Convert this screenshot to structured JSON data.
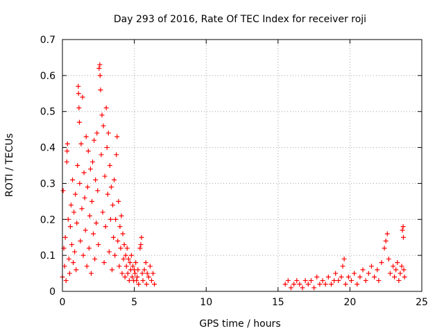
{
  "chart_data": {
    "type": "scatter",
    "title": "Day 293 of 2016, Rate Of TEC Index for receiver roji",
    "xlabel": "GPS time / hours",
    "ylabel": "ROTI / TECUs",
    "xlim": [
      0,
      25
    ],
    "ylim": [
      0,
      0.7
    ],
    "xticks": [
      0,
      5,
      10,
      15,
      20,
      25
    ],
    "xtick_labels": [
      "0",
      "5",
      "10",
      "15",
      "20",
      "25"
    ],
    "yticks": [
      0,
      0.1,
      0.2,
      0.3,
      0.4,
      0.5,
      0.6,
      0.7
    ],
    "ytick_labels": [
      "0",
      "0.1",
      "0.2",
      "0.3",
      "0.4",
      "0.5",
      "0.6",
      "0.7"
    ],
    "grid": true,
    "marker": "+",
    "marker_color": "#ff0000",
    "series": [
      {
        "name": "ROTI",
        "points": [
          [
            0.0,
            0.04
          ],
          [
            0.05,
            0.28
          ],
          [
            0.1,
            0.12
          ],
          [
            0.15,
            0.07
          ],
          [
            0.2,
            0.15
          ],
          [
            0.25,
            0.03
          ],
          [
            0.3,
            0.36
          ],
          [
            0.32,
            0.39
          ],
          [
            0.35,
            0.41
          ],
          [
            0.4,
            0.2
          ],
          [
            0.45,
            0.09
          ],
          [
            0.5,
            0.05
          ],
          [
            0.55,
            0.18
          ],
          [
            0.6,
            0.24
          ],
          [
            0.65,
            0.13
          ],
          [
            0.7,
            0.31
          ],
          [
            0.75,
            0.08
          ],
          [
            0.8,
            0.22
          ],
          [
            0.85,
            0.11
          ],
          [
            0.9,
            0.27
          ],
          [
            0.95,
            0.06
          ],
          [
            1.0,
            0.19
          ],
          [
            1.05,
            0.35
          ],
          [
            1.1,
            0.57
          ],
          [
            1.12,
            0.55
          ],
          [
            1.15,
            0.51
          ],
          [
            1.18,
            0.47
          ],
          [
            1.2,
            0.3
          ],
          [
            1.25,
            0.14
          ],
          [
            1.3,
            0.41
          ],
          [
            1.35,
            0.23
          ],
          [
            1.4,
            0.54
          ],
          [
            1.45,
            0.1
          ],
          [
            1.5,
            0.33
          ],
          [
            1.55,
            0.26
          ],
          [
            1.6,
            0.17
          ],
          [
            1.65,
            0.43
          ],
          [
            1.7,
            0.07
          ],
          [
            1.75,
            0.29
          ],
          [
            1.8,
            0.39
          ],
          [
            1.85,
            0.12
          ],
          [
            1.9,
            0.21
          ],
          [
            1.95,
            0.34
          ],
          [
            2.0,
            0.05
          ],
          [
            2.05,
            0.25
          ],
          [
            2.1,
            0.36
          ],
          [
            2.15,
            0.16
          ],
          [
            2.2,
            0.42
          ],
          [
            2.25,
            0.09
          ],
          [
            2.3,
            0.31
          ],
          [
            2.35,
            0.19
          ],
          [
            2.4,
            0.44
          ],
          [
            2.45,
            0.28
          ],
          [
            2.5,
            0.13
          ],
          [
            2.55,
            0.62
          ],
          [
            2.6,
            0.63
          ],
          [
            2.62,
            0.6
          ],
          [
            2.65,
            0.56
          ],
          [
            2.7,
            0.38
          ],
          [
            2.75,
            0.49
          ],
          [
            2.8,
            0.22
          ],
          [
            2.85,
            0.46
          ],
          [
            2.9,
            0.08
          ],
          [
            2.95,
            0.32
          ],
          [
            3.0,
            0.18
          ],
          [
            3.05,
            0.51
          ],
          [
            3.1,
            0.4
          ],
          [
            3.15,
            0.27
          ],
          [
            3.2,
            0.44
          ],
          [
            3.25,
            0.11
          ],
          [
            3.3,
            0.35
          ],
          [
            3.35,
            0.2
          ],
          [
            3.4,
            0.29
          ],
          [
            3.45,
            0.06
          ],
          [
            3.5,
            0.24
          ],
          [
            3.55,
            0.15
          ],
          [
            3.6,
            0.31
          ],
          [
            3.65,
            0.1
          ],
          [
            3.7,
            0.2
          ],
          [
            3.75,
            0.38
          ],
          [
            3.8,
            0.43
          ],
          [
            3.85,
            0.14
          ],
          [
            3.9,
            0.25
          ],
          [
            3.95,
            0.07
          ],
          [
            4.0,
            0.18
          ],
          [
            4.05,
            0.12
          ],
          [
            4.1,
            0.21
          ],
          [
            4.15,
            0.05
          ],
          [
            4.2,
            0.16
          ],
          [
            4.25,
            0.09
          ],
          [
            4.3,
            0.13
          ],
          [
            4.35,
            0.04
          ],
          [
            4.4,
            0.1
          ],
          [
            4.45,
            0.07
          ],
          [
            4.5,
            0.12
          ],
          [
            4.55,
            0.05
          ],
          [
            4.6,
            0.09
          ],
          [
            4.65,
            0.03
          ],
          [
            4.7,
            0.08
          ],
          [
            4.75,
            0.06
          ],
          [
            4.8,
            0.1
          ],
          [
            4.85,
            0.04
          ],
          [
            4.9,
            0.07
          ],
          [
            4.95,
            0.03
          ],
          [
            5.0,
            0.06
          ],
          [
            5.05,
            0.05
          ],
          [
            5.1,
            0.08
          ],
          [
            5.15,
            0.03
          ],
          [
            5.2,
            0.04
          ],
          [
            5.25,
            0.06
          ],
          [
            5.3,
            0.02
          ],
          [
            5.4,
            0.12
          ],
          [
            5.45,
            0.13
          ],
          [
            5.5,
            0.15
          ],
          [
            5.55,
            0.05
          ],
          [
            5.6,
            0.03
          ],
          [
            5.7,
            0.06
          ],
          [
            5.8,
            0.08
          ],
          [
            5.85,
            0.02
          ],
          [
            5.9,
            0.05
          ],
          [
            6.0,
            0.04
          ],
          [
            6.1,
            0.07
          ],
          [
            6.2,
            0.03
          ],
          [
            6.3,
            0.05
          ],
          [
            6.4,
            0.02
          ],
          [
            15.5,
            0.02
          ],
          [
            15.7,
            0.03
          ],
          [
            15.9,
            0.01
          ],
          [
            16.1,
            0.02
          ],
          [
            16.3,
            0.03
          ],
          [
            16.5,
            0.02
          ],
          [
            16.7,
            0.01
          ],
          [
            16.9,
            0.03
          ],
          [
            17.1,
            0.02
          ],
          [
            17.3,
            0.03
          ],
          [
            17.5,
            0.01
          ],
          [
            17.7,
            0.04
          ],
          [
            17.9,
            0.02
          ],
          [
            18.1,
            0.03
          ],
          [
            18.3,
            0.02
          ],
          [
            18.5,
            0.04
          ],
          [
            18.7,
            0.02
          ],
          [
            18.9,
            0.03
          ],
          [
            19.0,
            0.05
          ],
          [
            19.2,
            0.03
          ],
          [
            19.4,
            0.04
          ],
          [
            19.5,
            0.07
          ],
          [
            19.6,
            0.09
          ],
          [
            19.7,
            0.02
          ],
          [
            19.9,
            0.04
          ],
          [
            20.1,
            0.03
          ],
          [
            20.3,
            0.05
          ],
          [
            20.5,
            0.02
          ],
          [
            20.7,
            0.04
          ],
          [
            20.9,
            0.06
          ],
          [
            21.1,
            0.03
          ],
          [
            21.3,
            0.05
          ],
          [
            21.5,
            0.07
          ],
          [
            21.7,
            0.04
          ],
          [
            21.9,
            0.06
          ],
          [
            22.0,
            0.03
          ],
          [
            22.2,
            0.08
          ],
          [
            22.4,
            0.12
          ],
          [
            22.5,
            0.14
          ],
          [
            22.6,
            0.16
          ],
          [
            22.7,
            0.09
          ],
          [
            22.8,
            0.05
          ],
          [
            23.0,
            0.07
          ],
          [
            23.1,
            0.04
          ],
          [
            23.2,
            0.06
          ],
          [
            23.3,
            0.08
          ],
          [
            23.4,
            0.03
          ],
          [
            23.5,
            0.05
          ],
          [
            23.6,
            0.07
          ],
          [
            23.65,
            0.17
          ],
          [
            23.7,
            0.18
          ],
          [
            23.72,
            0.15
          ],
          [
            23.75,
            0.06
          ],
          [
            23.8,
            0.04
          ]
        ]
      }
    ]
  }
}
